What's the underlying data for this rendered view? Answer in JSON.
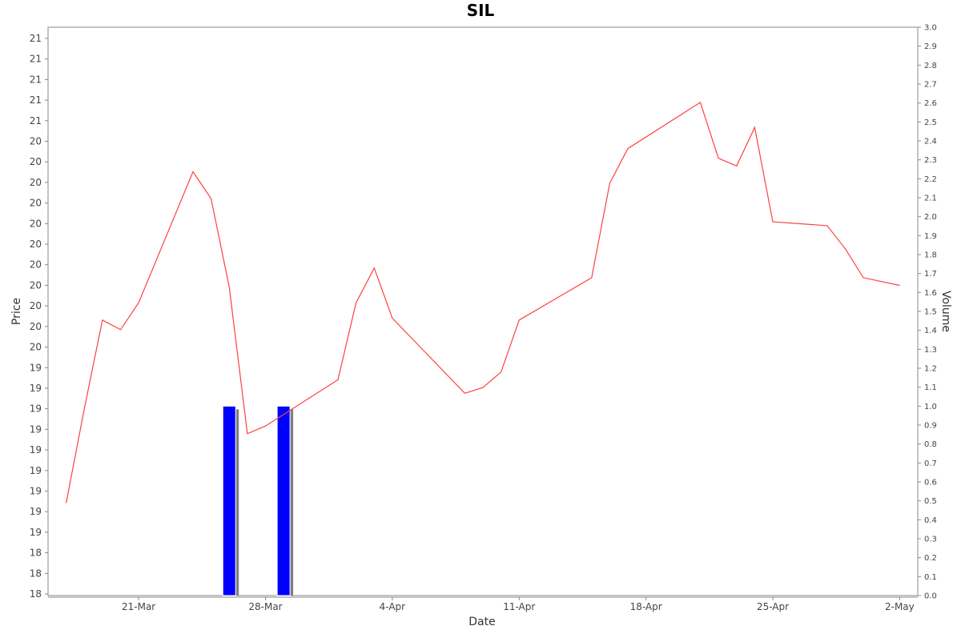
{
  "chart_data": {
    "type": "line",
    "title": "SIL",
    "xlabel": "Date",
    "ylabel": "Price",
    "ylabel_right": "Volume",
    "x_tick_labels": [
      "21-Mar",
      "28-Mar",
      "4-Apr",
      "11-Apr",
      "18-Apr",
      "25-Apr",
      "2-May"
    ],
    "x_tick_dates": [
      "2013-03-21",
      "2013-03-28",
      "2013-04-04",
      "2013-04-11",
      "2013-04-18",
      "2013-04-25",
      "2013-05-02"
    ],
    "x_range": [
      "2013-03-16",
      "2013-05-03"
    ],
    "price_tick_labels": [
      "21",
      "21",
      "21",
      "21",
      "21",
      "20",
      "20",
      "20",
      "20",
      "20",
      "20",
      "20",
      "20",
      "20",
      "20",
      "20",
      "19",
      "19",
      "19",
      "19",
      "19",
      "19",
      "19",
      "19",
      "19",
      "18",
      "18",
      "18"
    ],
    "price_range": [
      18.4,
      21.35
    ],
    "volume_tick_labels": [
      "3.0",
      "2.9",
      "2.8",
      "2.7",
      "2.6",
      "2.5",
      "2.4",
      "2.3",
      "2.2",
      "2.1",
      "2.0",
      "1.9",
      "1.8",
      "1.7",
      "1.6",
      "1.5",
      "1.4",
      "1.3",
      "1.2",
      "1.1",
      "1.0",
      "0.9",
      "0.8",
      "0.7",
      "0.6",
      "0.5",
      "0.4",
      "0.3",
      "0.2",
      "0.1",
      "0.0"
    ],
    "volume_range": [
      0,
      3.0
    ],
    "series": [
      {
        "type": "line",
        "color": "#ff4040",
        "points": [
          {
            "x": "2013-03-17",
            "y": 18.88
          },
          {
            "x": "2013-03-18",
            "y": 19.37
          },
          {
            "x": "2013-03-19",
            "y": 19.83
          },
          {
            "x": "2013-03-20",
            "y": 19.78
          },
          {
            "x": "2013-03-21",
            "y": 19.92
          },
          {
            "x": "2013-03-24",
            "y": 20.6
          },
          {
            "x": "2013-03-25",
            "y": 20.46
          },
          {
            "x": "2013-03-26",
            "y": 20.0
          },
          {
            "x": "2013-03-27",
            "y": 19.24
          },
          {
            "x": "2013-03-28",
            "y": 19.28
          },
          {
            "x": "2013-04-01",
            "y": 19.52
          },
          {
            "x": "2013-04-02",
            "y": 19.92
          },
          {
            "x": "2013-04-03",
            "y": 20.1
          },
          {
            "x": "2013-04-04",
            "y": 19.84
          },
          {
            "x": "2013-04-08",
            "y": 19.45
          },
          {
            "x": "2013-04-09",
            "y": 19.48
          },
          {
            "x": "2013-04-10",
            "y": 19.56
          },
          {
            "x": "2013-04-11",
            "y": 19.83
          },
          {
            "x": "2013-04-15",
            "y": 20.05
          },
          {
            "x": "2013-04-16",
            "y": 20.54
          },
          {
            "x": "2013-04-17",
            "y": 20.72
          },
          {
            "x": "2013-04-21",
            "y": 20.96
          },
          {
            "x": "2013-04-22",
            "y": 20.67
          },
          {
            "x": "2013-04-23",
            "y": 20.63
          },
          {
            "x": "2013-04-24",
            "y": 20.83
          },
          {
            "x": "2013-04-25",
            "y": 20.34
          },
          {
            "x": "2013-04-28",
            "y": 20.32
          },
          {
            "x": "2013-04-29",
            "y": 20.2
          },
          {
            "x": "2013-04-30",
            "y": 20.05
          },
          {
            "x": "2013-05-02",
            "y": 20.01
          }
        ]
      },
      {
        "type": "bar",
        "color": "#0000ff",
        "points": [
          {
            "x": "2013-03-26",
            "y": 1.0
          },
          {
            "x": "2013-03-29",
            "y": 1.0
          }
        ]
      }
    ],
    "grid": false
  }
}
